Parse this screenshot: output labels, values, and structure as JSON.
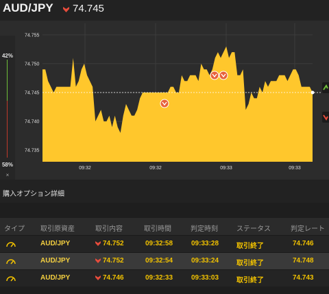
{
  "header": {
    "pair": "AUD/JPY",
    "direction_icon": "down-arrow-icon",
    "rate": "74.745"
  },
  "chart": {
    "ratio_top_label": "42%",
    "ratio_bottom_label": "58%",
    "close_label": "×",
    "y_ticks": [
      "74.755",
      "74.750",
      "74.745",
      "74.740",
      "74.735"
    ],
    "x_ticks": [
      "09:32",
      "09:32",
      "09:33",
      "09:33"
    ],
    "current_rate": 74.745,
    "fill_color": "#ffc72c",
    "up_color": "#6fbf3a",
    "down_color": "#e74c3c"
  },
  "chart_data": {
    "type": "area",
    "ylim": [
      74.733,
      74.757
    ],
    "y": [
      74.749,
      74.749,
      74.747,
      74.746,
      74.745,
      74.746,
      74.746,
      74.746,
      74.746,
      74.746,
      74.746,
      74.751,
      74.746,
      74.747,
      74.749,
      74.75,
      74.748,
      74.747,
      74.746,
      74.74,
      74.741,
      74.742,
      74.74,
      74.74,
      74.741,
      74.739,
      74.741,
      74.739,
      74.738,
      74.741,
      74.743,
      74.742,
      74.741,
      74.741,
      74.742,
      74.744,
      74.745,
      74.745,
      74.745,
      74.745,
      74.745,
      74.745,
      74.745,
      74.745,
      74.745,
      74.745,
      74.746,
      74.746,
      74.745,
      74.745,
      74.748,
      74.747,
      74.747,
      74.748,
      74.748,
      74.748,
      74.747,
      74.75,
      74.749,
      74.749,
      74.748,
      74.749,
      74.751,
      74.752,
      74.751,
      74.752,
      74.753,
      74.751,
      74.752,
      74.752,
      74.748,
      74.748,
      74.749,
      74.742,
      74.743,
      74.745,
      74.744,
      74.744,
      74.746,
      74.745,
      74.747,
      74.746,
      74.747,
      74.747,
      74.747,
      74.748,
      74.748,
      74.748,
      74.747,
      74.748,
      74.749,
      74.749,
      74.748,
      74.746,
      74.746,
      74.746,
      74.746,
      74.745
    ]
  },
  "section": {
    "title": "購入オプション詳細"
  },
  "table": {
    "headers": [
      "タイプ",
      "取引原資産",
      "取引内容",
      "取引時間",
      "判定時刻",
      "ステータス",
      "判定レート"
    ],
    "rows": [
      {
        "type_icon": "gauge-icon",
        "asset": "AUD/JPY",
        "direction_icon": "down-arrow-icon",
        "content": "74.752",
        "trade_time": "09:32:58",
        "judge_time": "09:33:28",
        "status": "取引終了",
        "judge_rate": "74.746"
      },
      {
        "type_icon": "gauge-icon",
        "asset": "AUD/JPY",
        "direction_icon": "down-arrow-icon",
        "content": "74.752",
        "trade_time": "09:32:54",
        "judge_time": "09:33:24",
        "status": "取引終了",
        "judge_rate": "74.748"
      },
      {
        "type_icon": "gauge-icon",
        "asset": "AUD/JPY",
        "direction_icon": "down-arrow-icon",
        "content": "74.746",
        "trade_time": "09:32:33",
        "judge_time": "09:33:03",
        "status": "取引終了",
        "judge_rate": "74.743"
      }
    ]
  }
}
